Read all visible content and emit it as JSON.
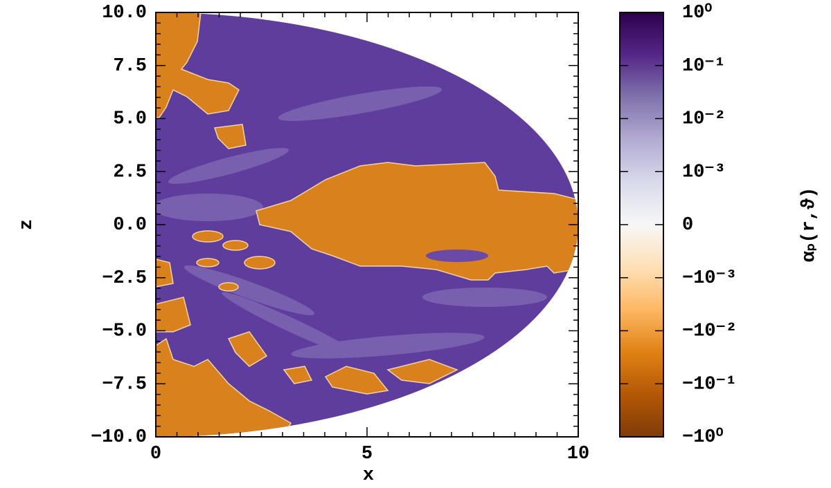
{
  "chart_data": {
    "type": "heatmap",
    "xlabel": "x",
    "ylabel": "z",
    "xlim": [
      0,
      10
    ],
    "ylim": [
      -10,
      10
    ],
    "xticks": [
      0,
      5,
      10
    ],
    "yticks": [
      {
        "value": -10,
        "label": "−10.0"
      },
      {
        "value": -7.5,
        "label": "−7.5"
      },
      {
        "value": -5,
        "label": "−5.0"
      },
      {
        "value": -2.5,
        "label": "−2.5"
      },
      {
        "value": 0,
        "label": "0.0"
      },
      2.5,
      {
        "value": 5,
        "label": "5.0"
      },
      7.5,
      {
        "value": 10,
        "label": "10.0"
      }
    ],
    "colorbar": {
      "label": "αₚ(r,ϑ)",
      "scale": "symlog",
      "linthresh": 0.001,
      "lim": [
        -1,
        1
      ],
      "ticks": [
        {
          "value": 1,
          "label": "10⁰"
        },
        {
          "value": 0.1,
          "label": "10⁻¹"
        },
        {
          "value": 0.01,
          "label": "10⁻²"
        },
        {
          "value": 0.001,
          "label": "10⁻³"
        },
        0,
        {
          "value": -0.001,
          "label": "−10⁻³"
        },
        {
          "value": -0.01,
          "label": "−10⁻²"
        },
        {
          "value": -0.1,
          "label": "−10⁻¹"
        },
        {
          "value": -1,
          "label": "−10⁰"
        }
      ],
      "colors": [
        "#7f3b08",
        "#b35806",
        "#e08214",
        "#fdb863",
        "#fee0b6",
        "#f7f7f7",
        "#d8daeb",
        "#b2abd2",
        "#8073ac",
        "#542788",
        "#2d004b"
      ]
    }
  }
}
